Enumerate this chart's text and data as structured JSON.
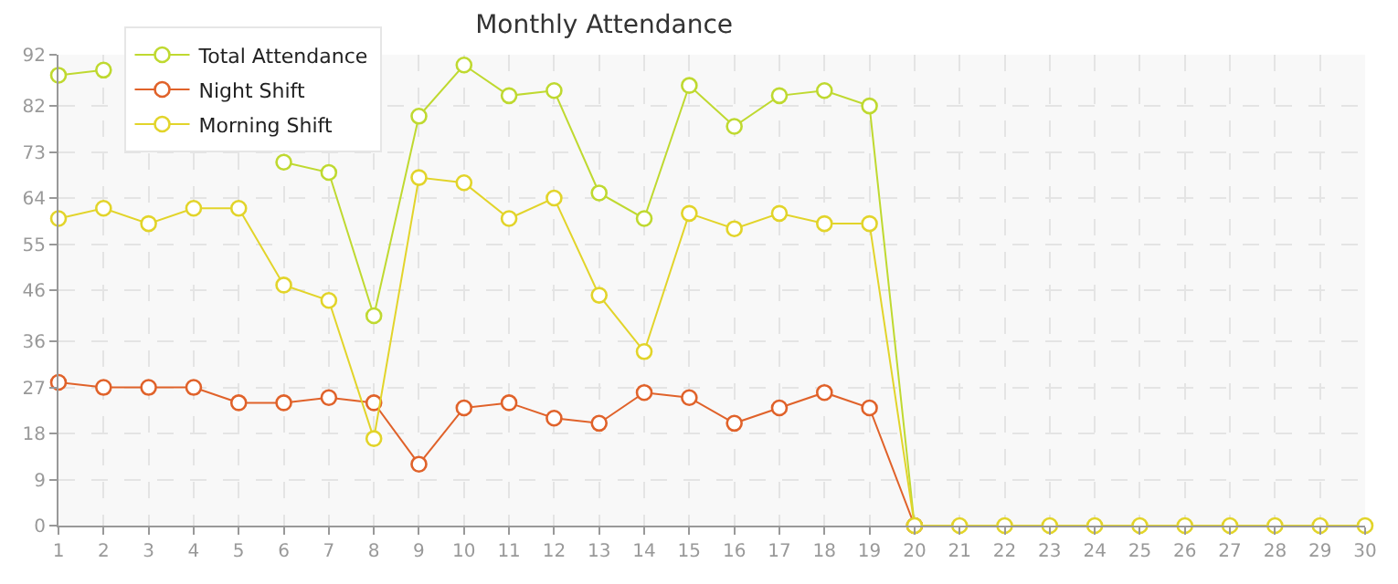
{
  "chart_data": {
    "type": "line",
    "title": "Monthly Attendance",
    "x": [
      1,
      2,
      3,
      4,
      5,
      6,
      7,
      8,
      9,
      10,
      11,
      12,
      13,
      14,
      15,
      16,
      17,
      18,
      19,
      20,
      21,
      22,
      23,
      24,
      25,
      26,
      27,
      28,
      29,
      30
    ],
    "series": [
      {
        "name": "Total Attendance",
        "color": "#bfd930",
        "values": [
          88,
          89,
          null,
          null,
          null,
          71,
          69,
          41,
          80,
          90,
          84,
          85,
          65,
          60,
          86,
          78,
          84,
          85,
          82,
          0,
          null,
          null,
          null,
          null,
          null,
          null,
          null,
          null,
          null,
          null
        ]
      },
      {
        "name": "Night Shift",
        "color": "#e0622a",
        "values": [
          28,
          27,
          27,
          27,
          24,
          24,
          25,
          24,
          12,
          23,
          24,
          21,
          20,
          26,
          25,
          20,
          23,
          26,
          23,
          0,
          null,
          null,
          null,
          null,
          null,
          null,
          null,
          null,
          null,
          null
        ]
      },
      {
        "name": "Morning Shift",
        "color": "#e2d42a",
        "values": [
          60,
          62,
          59,
          62,
          62,
          47,
          44,
          17,
          68,
          67,
          60,
          64,
          45,
          34,
          61,
          58,
          61,
          59,
          59,
          0,
          0,
          0,
          0,
          0,
          0,
          0,
          0,
          0,
          0,
          0
        ]
      }
    ],
    "xlim": [
      1,
      30
    ],
    "xticks": [
      1,
      2,
      3,
      4,
      5,
      6,
      7,
      8,
      9,
      10,
      11,
      12,
      13,
      14,
      15,
      16,
      17,
      18,
      19,
      20,
      21,
      22,
      23,
      24,
      25,
      26,
      27,
      28,
      29,
      30
    ],
    "ylim": [
      0,
      92
    ],
    "yticks": [
      0,
      9,
      18,
      27,
      36,
      46,
      55,
      64,
      73,
      82,
      92
    ],
    "grid": true,
    "legend": "top left",
    "marker": "circle",
    "line_style": "solid"
  }
}
